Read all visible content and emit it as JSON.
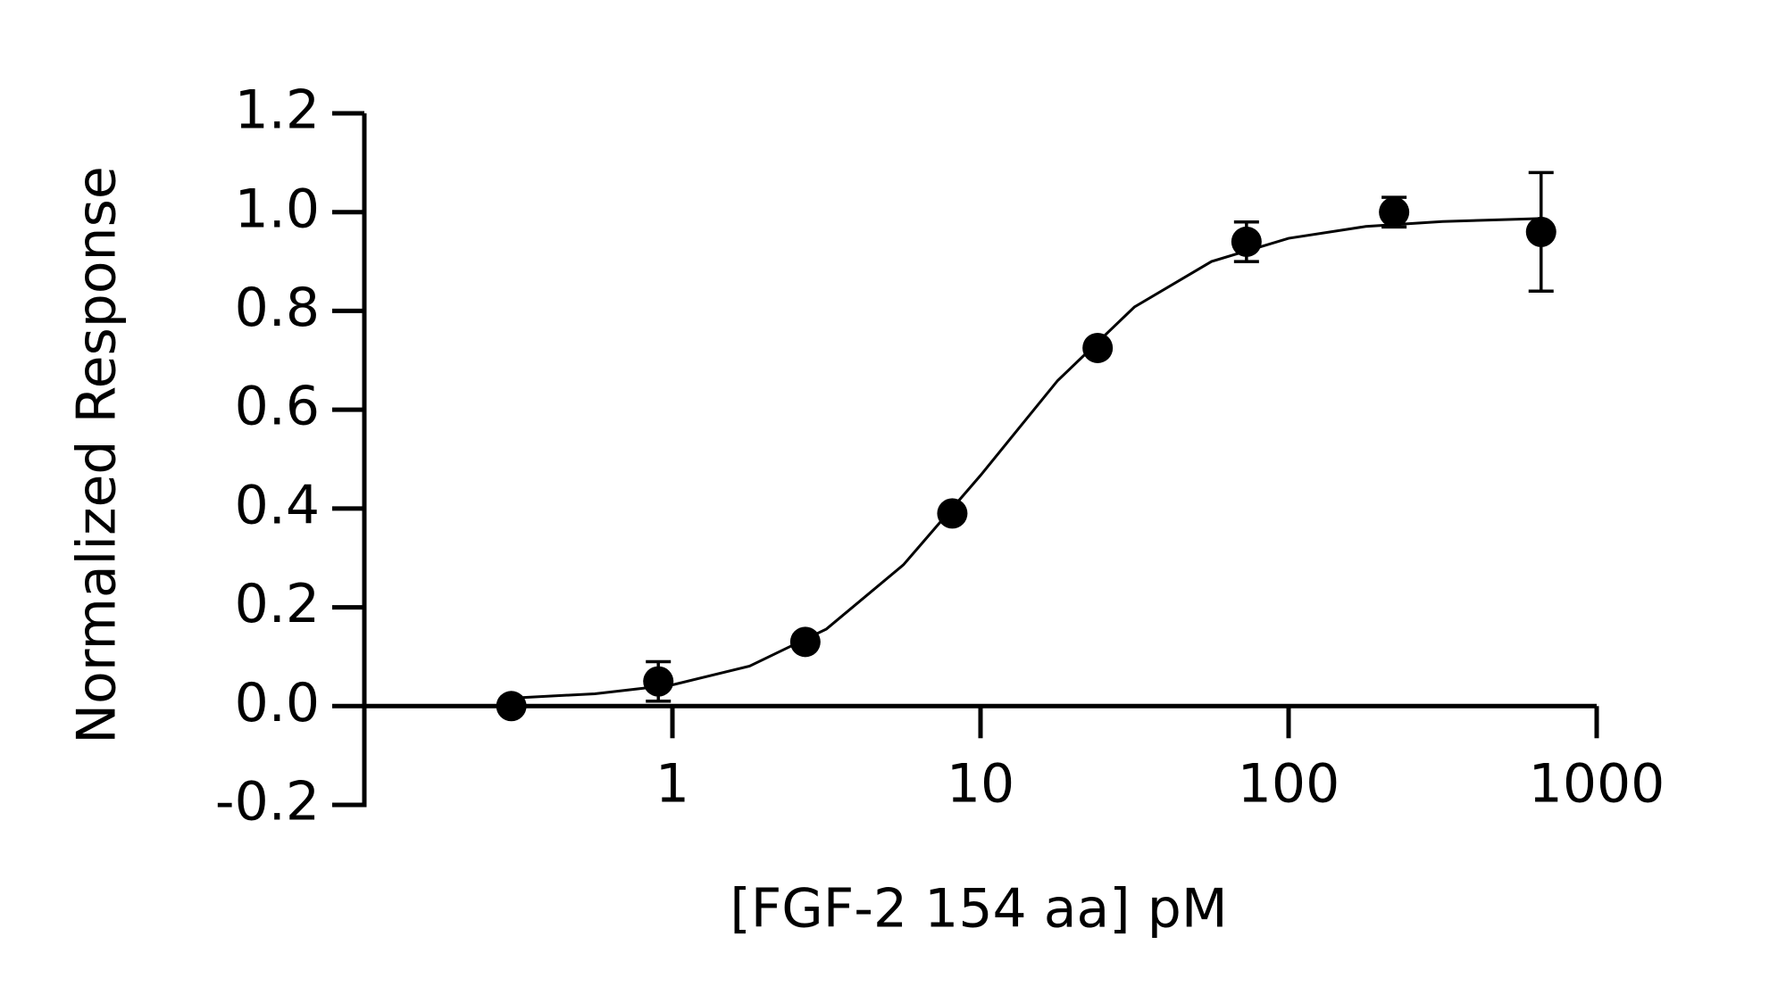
{
  "chart_data": {
    "type": "scatter",
    "xlabel": "[FGF-2 154 aa] pM",
    "ylabel": "Normalized Response",
    "xscale": "log",
    "xlim": [
      0.1,
      1000
    ],
    "xticks": [
      1,
      10,
      100,
      1000
    ],
    "ylim": [
      -0.2,
      1.2
    ],
    "yticks": [
      -0.2,
      {
        "value": 0,
        "label": "0.0"
      },
      0.2,
      0.4,
      0.6,
      0.8,
      {
        "value": 1,
        "label": "1.0"
      },
      1.2
    ],
    "color": "#000000",
    "series": [
      {
        "color": "#000000",
        "x": [
          0.3,
          0.9,
          2.7,
          8.1,
          24,
          73,
          220,
          660
        ],
        "values": [
          0.0,
          0.05,
          0.13,
          0.39,
          0.725,
          0.94,
          1.0,
          0.96
        ],
        "errors": [
          0,
          0.04,
          0,
          0,
          0,
          0.04,
          0.03,
          0.12
        ]
      },
      {
        "type": "line",
        "color": "#000000",
        "x": [
          0.3,
          0.56,
          1,
          1.78,
          3.16,
          5.62,
          10,
          17.8,
          31.6,
          56.2,
          100,
          178,
          316,
          660
        ],
        "values": [
          0.016,
          0.025,
          0.043,
          0.081,
          0.156,
          0.286,
          0.467,
          0.659,
          0.808,
          0.9,
          0.947,
          0.971,
          0.981,
          0.987
        ]
      }
    ]
  }
}
